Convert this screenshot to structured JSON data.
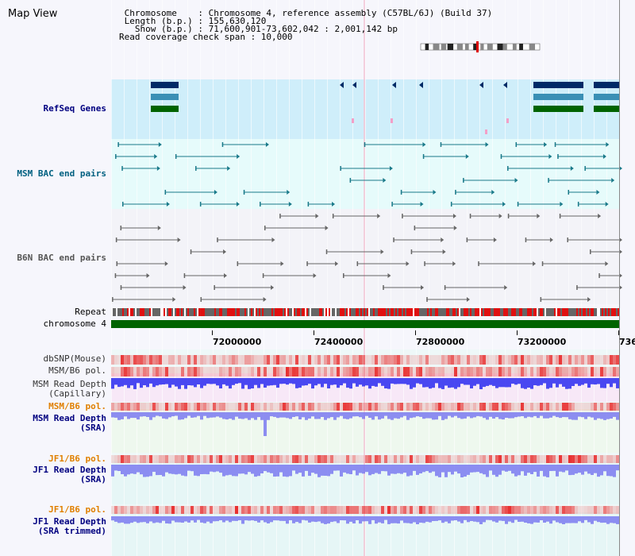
{
  "panel": {
    "title": "Map View"
  },
  "info": {
    "line1": " Chromosome    : Chromosome 4, reference assembly (C57BL/6J) (Build 37)",
    "line2": " Length (b.p.) : 155,630,120",
    "line3": "   Show (b.p.) : 71,600,901-73,602,042 : 2,001,142 bp",
    "line4": "Read coverage check span : 10,000"
  },
  "tracks": {
    "refseq": "RefSeq Genes",
    "msm_bac": "MSM BAC end pairs",
    "b6n_bac": "B6N BAC end pairs",
    "repeat": "Repeat",
    "chromosome": "chromosome 4",
    "dbsnp": "dbSNP(Mouse)",
    "msm_b6_pol": "MSM/B6 pol.",
    "msm_depth_cap_1": "MSM Read Depth",
    "msm_depth_cap_2": "(Capillary)",
    "msm_b6_pol2": "MSM/B6 pol.",
    "msm_depth_sra_1": "MSM Read Depth",
    "msm_depth_sra_2": "(SRA)",
    "jf1_b6_pol": "JF1/B6 pol.",
    "jf1_depth_sra_1": "JF1 Read Depth",
    "jf1_depth_sra_2": "(SRA)",
    "jf1_b6_pol2": "JF1/B6 pol.",
    "jf1_depth_trim_1": "JF1 Read Depth",
    "jf1_depth_trim_2": "(SRA trimmed)"
  },
  "axis": {
    "ticks": [
      "72000000",
      "72400000",
      "72800000",
      "73200000",
      "736"
    ]
  },
  "colors": {
    "refseq_bg": "#cfeefa",
    "msm_bg": "#e6fbfb",
    "b6n_bg": "#f3f3f8",
    "gene_dark": "#002a66",
    "gene_mid": "#3a8fb5",
    "gene_green": "#006400",
    "msm_pair": "#1a7a8a",
    "b6n_pair": "#666666",
    "chromosome_bar": "#006400",
    "depth_blue": "#2a2af0",
    "depth_soft": "#7a7af0",
    "pol_red": "#e83030",
    "label_blue": "#000080",
    "label_teal": "#006080",
    "label_orange": "#e08000"
  }
}
